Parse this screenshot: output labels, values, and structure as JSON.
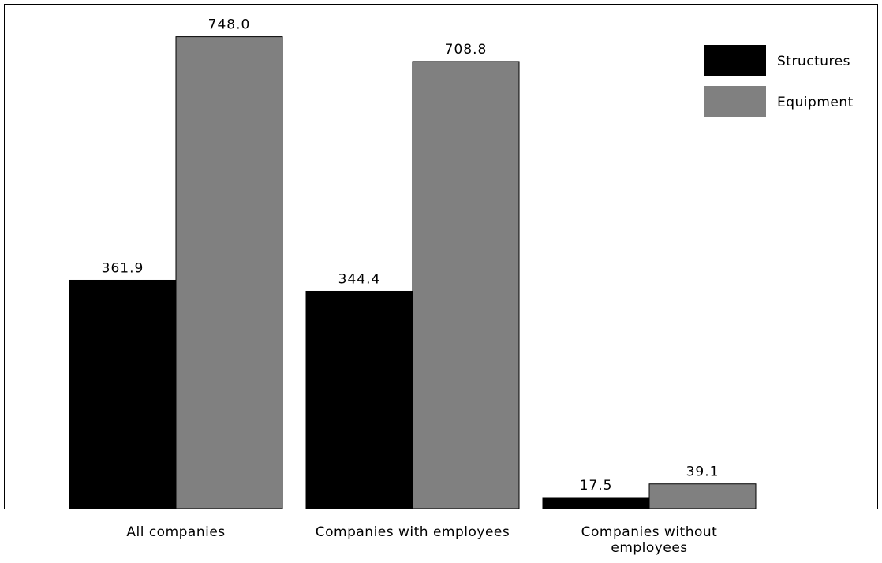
{
  "chart_data": {
    "type": "bar",
    "categories": [
      "All companies",
      "Companies with employees",
      "Companies without employees"
    ],
    "category_lines": [
      [
        "All companies"
      ],
      [
        "Companies with employees"
      ],
      [
        "Companies without",
        "employees"
      ]
    ],
    "series": [
      {
        "name": "Structures",
        "values": [
          361.9,
          344.4,
          17.5
        ],
        "color": "#000000"
      },
      {
        "name": "Equipment",
        "values": [
          748.0,
          708.8,
          39.1
        ],
        "color": "#808080"
      }
    ],
    "data_labels": [
      [
        "361.9",
        "344.4",
        "17.5"
      ],
      [
        "748.0",
        "708.8",
        "39.1"
      ]
    ],
    "ylim": [
      0,
      800
    ],
    "grid": false,
    "legend_position": "top-right"
  }
}
